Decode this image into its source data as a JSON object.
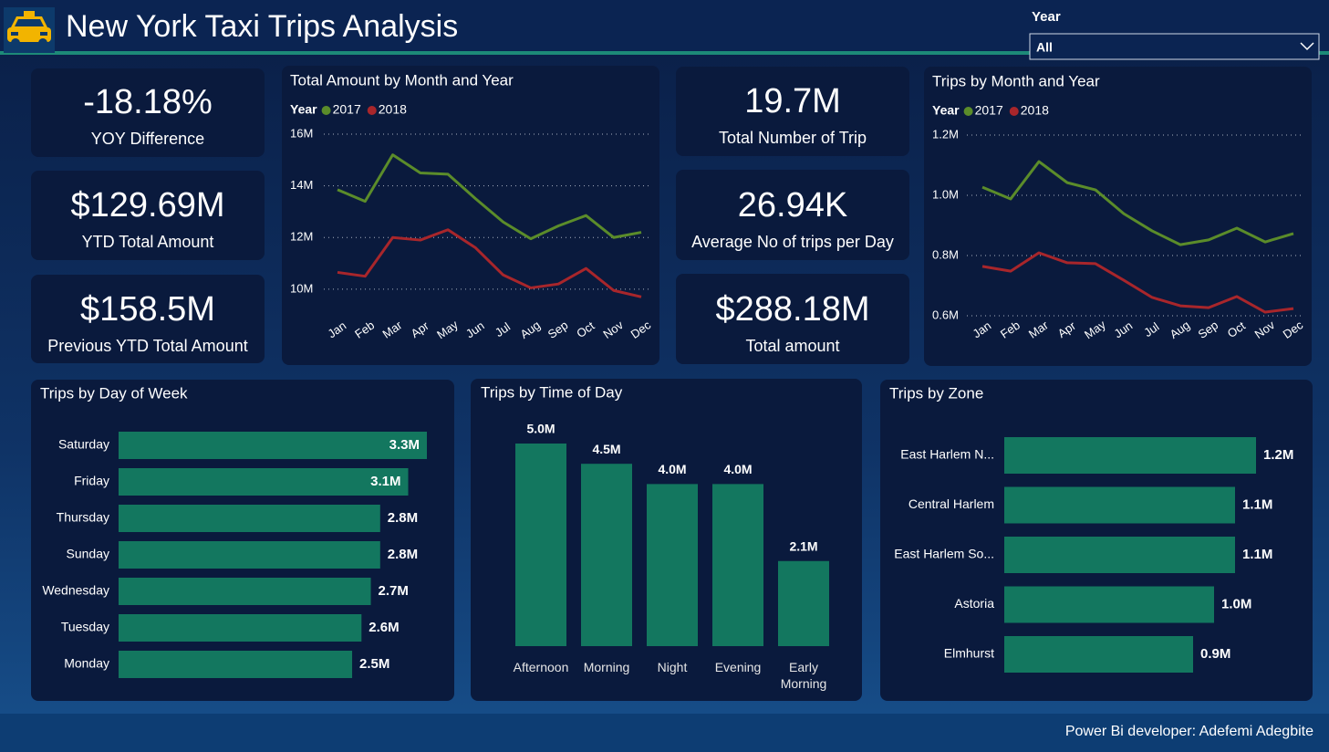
{
  "header": {
    "title": "New York Taxi Trips Analysis",
    "slicer_label": "Year",
    "slicer_value": "All"
  },
  "kpis": [
    {
      "value": "-18.18%",
      "label": "YOY Difference"
    },
    {
      "value": "$129.69M",
      "label": "YTD Total Amount"
    },
    {
      "value": "$158.5M",
      "label": "Previous YTD Total Amount"
    },
    {
      "value": "19.7M",
      "label": "Total Number of Trip"
    },
    {
      "value": "26.94K",
      "label": "Average No of trips per Day"
    },
    {
      "value": "$288.18M",
      "label": "Total amount"
    }
  ],
  "chart_data": [
    {
      "type": "line",
      "title": "Total Amount by Month and Year",
      "legend_title": "Year",
      "categories": [
        "Jan",
        "Feb",
        "Mar",
        "Apr",
        "May",
        "Jun",
        "Jul",
        "Aug",
        "Sep",
        "Oct",
        "Nov",
        "Dec"
      ],
      "series": [
        {
          "name": "2017",
          "color": "#5b8c2a",
          "values": [
            13850000,
            13400000,
            15200000,
            14500000,
            14450000,
            13500000,
            12600000,
            11950000,
            12450000,
            12850000,
            12000000,
            12200000
          ]
        },
        {
          "name": "2018",
          "color": "#a8262b",
          "values": [
            10650000,
            10500000,
            12000000,
            11900000,
            12300000,
            11600000,
            10550000,
            10050000,
            10200000,
            10800000,
            9950000,
            9700000
          ]
        }
      ],
      "ylim": [
        9500000,
        16000000
      ],
      "yticks": [
        {
          "value": 10000000,
          "label": "10M"
        },
        {
          "value": 12000000,
          "label": "12M"
        },
        {
          "value": 14000000,
          "label": "14M"
        },
        {
          "value": 16000000,
          "label": "16M"
        }
      ],
      "grid": true
    },
    {
      "type": "line",
      "title": "Trips by Month and Year",
      "legend_title": "Year",
      "categories": [
        "Jan",
        "Feb",
        "Mar",
        "Apr",
        "May",
        "Jun",
        "Jul",
        "Aug",
        "Sep",
        "Oct",
        "Nov",
        "Dec"
      ],
      "series": [
        {
          "name": "2017",
          "color": "#5b8c2a",
          "values": [
            1027000,
            988000,
            1112000,
            1042000,
            1018000,
            939000,
            882000,
            836000,
            852000,
            891000,
            845000,
            873000
          ]
        },
        {
          "name": "2018",
          "color": "#a8262b",
          "values": [
            764000,
            748000,
            809000,
            776000,
            773000,
            718000,
            661000,
            633000,
            627000,
            664000,
            612000,
            624000
          ]
        }
      ],
      "ylim": [
        600000,
        1200000
      ],
      "yticks": [
        {
          "value": 600000,
          "label": "0.6M"
        },
        {
          "value": 800000,
          "label": "0.8M"
        },
        {
          "value": 1000000,
          "label": "1.0M"
        },
        {
          "value": 1200000,
          "label": "1.2M"
        }
      ],
      "grid": true
    },
    {
      "type": "hbar",
      "title": "Trips by Day of Week",
      "color": "#13775f",
      "categories": [
        "Saturday",
        "Friday",
        "Thursday",
        "Sunday",
        "Wednesday",
        "Tuesday",
        "Monday"
      ],
      "values": [
        3300000,
        3100000,
        2800000,
        2800000,
        2700000,
        2600000,
        2500000
      ],
      "value_labels": [
        "3.3M",
        "3.1M",
        "2.8M",
        "2.8M",
        "2.7M",
        "2.6M",
        "2.5M"
      ]
    },
    {
      "type": "bar",
      "title": "Trips by Time of Day",
      "color": "#13775f",
      "categories": [
        "Afternoon",
        "Morning",
        "Night",
        "Evening",
        "Early Morning"
      ],
      "values": [
        5000000,
        4500000,
        4000000,
        4000000,
        2100000
      ],
      "value_labels": [
        "5.0M",
        "4.5M",
        "4.0M",
        "4.0M",
        "2.1M"
      ]
    },
    {
      "type": "hbar",
      "title": "Trips by Zone",
      "color": "#13775f",
      "categories": [
        "East Harlem N...",
        "Central Harlem",
        "East Harlem So...",
        "Astoria",
        "Elmhurst"
      ],
      "values": [
        1200000,
        1100000,
        1100000,
        1000000,
        900000
      ],
      "value_labels": [
        "1.2M",
        "1.1M",
        "1.1M",
        "1.0M",
        "0.9M"
      ]
    }
  ],
  "footer": {
    "credit": "Power Bi developer: Adefemi Adegbite"
  }
}
